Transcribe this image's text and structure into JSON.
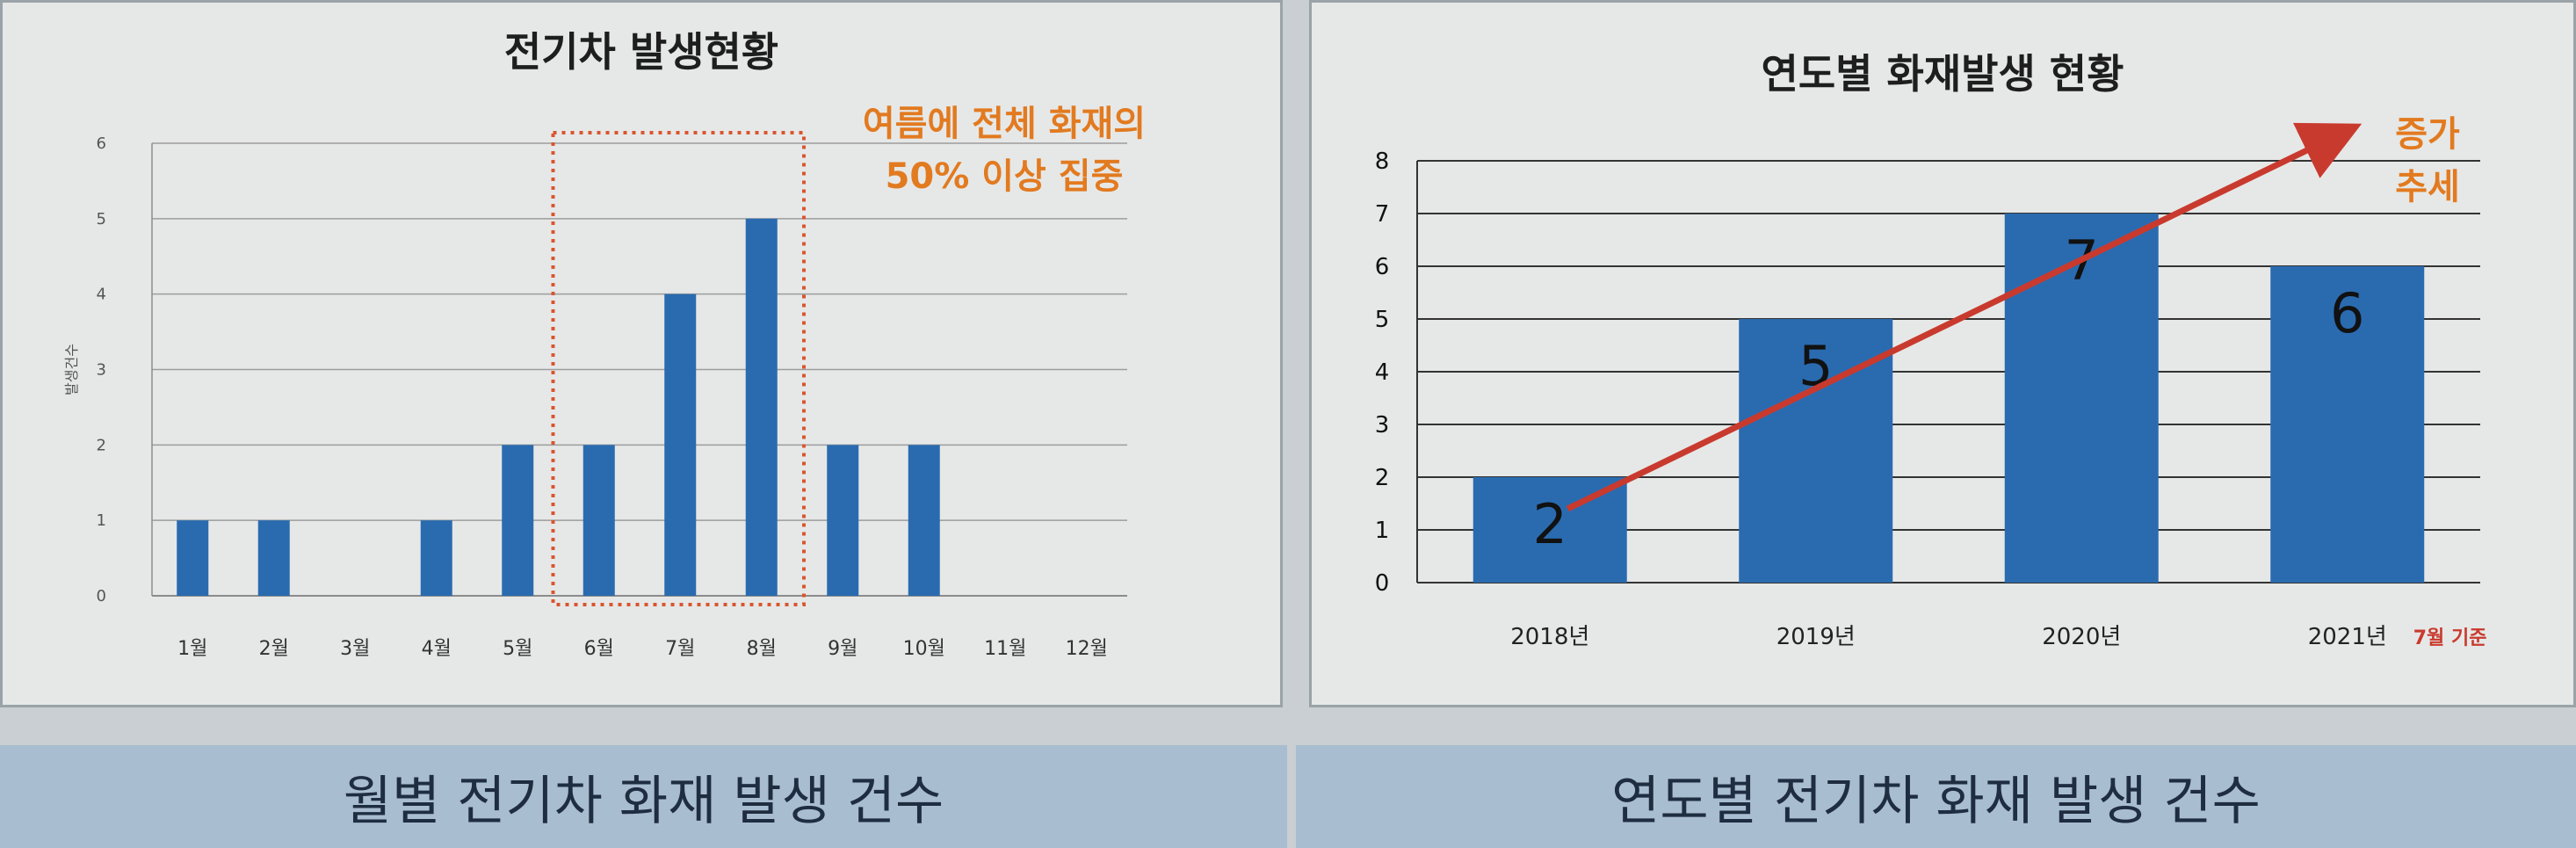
{
  "left_chart": {
    "title": "전기차 발생현황",
    "annotation": [
      "여름에 전체 화재의",
      "50% 이상 집중"
    ],
    "caption": "월별 전기차 화재 발생 건수"
  },
  "right_chart": {
    "title": "연도별 화재발생 현황",
    "trend_note": [
      "증가",
      "추세"
    ],
    "footnote": "7월 기준",
    "caption": "연도별 전기차 화재 발생 건수"
  },
  "colors": {
    "bar": "#2a6bb0",
    "annotation": "#e27a20",
    "trend_arrow": "#c93a2e"
  },
  "chart_data": [
    {
      "type": "bar",
      "title": "전기차 발생현황",
      "ylabel": "발생건수",
      "categories": [
        "1월",
        "2월",
        "3월",
        "4월",
        "5월",
        "6월",
        "7월",
        "8월",
        "9월",
        "10월",
        "11월",
        "12월"
      ],
      "values": [
        1,
        1,
        0,
        1,
        2,
        2,
        4,
        5,
        2,
        2,
        0,
        0
      ],
      "ylim": [
        0,
        6
      ],
      "yticks": [
        0,
        1,
        2,
        3,
        4,
        5,
        6
      ],
      "grid": true,
      "highlight": {
        "categories": [
          "6월",
          "7월",
          "8월"
        ],
        "style": "dotted-box"
      }
    },
    {
      "type": "bar",
      "title": "연도별 화재발생 현황",
      "categories": [
        "2018년",
        "2019년",
        "2020년",
        "2021년"
      ],
      "values": [
        2,
        5,
        7,
        6
      ],
      "data_labels": [
        "2",
        "5",
        "7",
        "6"
      ],
      "ylim": [
        0,
        8
      ],
      "yticks": [
        0,
        1,
        2,
        3,
        4,
        5,
        6,
        7,
        8
      ],
      "grid": true,
      "trend_arrow": true
    }
  ]
}
